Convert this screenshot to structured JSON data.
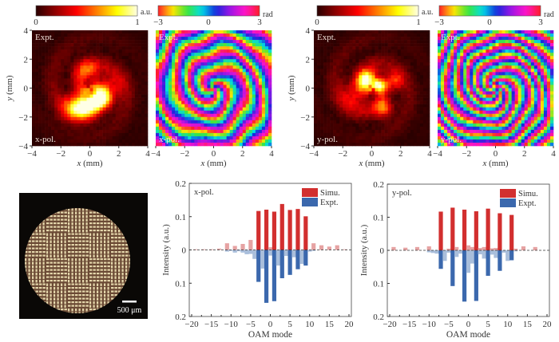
{
  "colorbars": {
    "intensity": {
      "min_label": "0",
      "max_label": "1",
      "unit": "a.u.",
      "colormap": "hot"
    },
    "phase": {
      "min_label": "-3",
      "mid_label": "0",
      "max_label": "3",
      "unit": "rad",
      "colormap": "hsv"
    }
  },
  "maps": [
    {
      "kind": "intensity",
      "top_label": "Expt.",
      "bottom_label": "x-pol.",
      "xlabel": "x (mm)",
      "ylabel": "y (mm)",
      "ticks": [
        "-4",
        "-2",
        "0",
        "2",
        "4"
      ]
    },
    {
      "kind": "phase",
      "top_label": "Expt.",
      "bottom_label": "x-pol.",
      "xlabel": "x (mm)",
      "ticks": [
        "-4",
        "-2",
        "0",
        "2",
        "4"
      ]
    },
    {
      "kind": "intensity",
      "top_label": "Expt.",
      "bottom_label": "y-pol.",
      "xlabel": "x (mm)",
      "ylabel": "y (mm)",
      "ticks": [
        "-4",
        "-2",
        "0",
        "2",
        "4"
      ]
    },
    {
      "kind": "phase",
      "top_label": "Expt.",
      "bottom_label": "y-pol.",
      "xlabel": "x (mm)",
      "ticks": [
        "-4",
        "-2",
        "0",
        "2",
        "4"
      ]
    }
  ],
  "photo": {
    "scale_bar_label": "500 μm"
  },
  "colors": {
    "simu": "#d22f2f",
    "simu_light": "#e6a3a3",
    "expt": "#3b68ad",
    "expt_light": "#a9bedb"
  },
  "chart_data": [
    {
      "type": "bar",
      "title": "x-pol.",
      "xlabel": "OAM mode",
      "ylabel": "Intensity (a.u.)",
      "xlim": [
        -20,
        20
      ],
      "xticks": [
        -20,
        -15,
        -10,
        -5,
        0,
        5,
        10,
        15,
        20
      ],
      "ylim_up": [
        0,
        0.2
      ],
      "ylim_down": [
        0,
        0.2
      ],
      "yticks": [
        "0.2",
        "0.1",
        "0",
        "0.1",
        "0.2"
      ],
      "legend": {
        "position": "top-right",
        "entries": [
          "Simu.",
          "Expt."
        ]
      },
      "design_modes": [
        -3,
        -1,
        1,
        3,
        5,
        7,
        9
      ],
      "series": [
        {
          "name": "Simu.",
          "direction": "up",
          "modes": [
            -19,
            -17,
            -15,
            -13,
            -11,
            -9,
            -7,
            -5,
            -3,
            -1,
            0,
            1,
            3,
            5,
            7,
            9,
            11,
            13,
            15,
            17,
            19
          ],
          "values": [
            0.002,
            0.002,
            0.002,
            0.004,
            0.02,
            0.012,
            0.018,
            0.03,
            0.117,
            0.121,
            0.008,
            0.115,
            0.138,
            0.12,
            0.123,
            0.101,
            0.02,
            0.014,
            0.01,
            0.014,
            0.002
          ]
        },
        {
          "name": "Expt.",
          "direction": "down",
          "modes": [
            -11,
            -10,
            -9,
            -8,
            -7,
            -6,
            -5,
            -4,
            -3,
            -2,
            -1,
            0,
            1,
            2,
            3,
            4,
            5,
            6,
            7,
            8,
            9,
            10,
            11
          ],
          "values": [
            0.005,
            0.003,
            0.008,
            0.004,
            0.008,
            0.013,
            0.012,
            0.027,
            0.096,
            0.056,
            0.159,
            0.017,
            0.154,
            0.047,
            0.085,
            0.018,
            0.075,
            0.022,
            0.058,
            0.042,
            0.047,
            0.005,
            0.003
          ]
        }
      ]
    },
    {
      "type": "bar",
      "title": "y-pol.",
      "xlabel": "OAM mode",
      "ylabel": "Intensity (a.u.)",
      "xlim": [
        -20,
        20
      ],
      "xticks": [
        -20,
        -15,
        -10,
        -5,
        0,
        5,
        10,
        15,
        20
      ],
      "ylim_up": [
        0,
        0.2
      ],
      "ylim_down": [
        0,
        0.2
      ],
      "yticks": [
        "0.2",
        "0.1",
        "0",
        "0.1",
        "0.2"
      ],
      "legend": {
        "position": "top-right",
        "entries": [
          "Simu.",
          "Expt."
        ]
      },
      "design_modes": [
        -7,
        -4,
        -1,
        2,
        5,
        8,
        11
      ],
      "series": [
        {
          "name": "Simu.",
          "direction": "up",
          "modes": [
            -19,
            -16,
            -13,
            -10,
            -7,
            -5,
            -4,
            -3,
            -1,
            0,
            1,
            2,
            3,
            4,
            5,
            6,
            7,
            8,
            11,
            12,
            14,
            17
          ],
          "values": [
            0.01,
            0.008,
            0.01,
            0.012,
            0.117,
            0.005,
            0.129,
            0.01,
            0.123,
            0.015,
            0.01,
            0.118,
            0.007,
            0.01,
            0.126,
            0.006,
            0.007,
            0.112,
            0.107,
            0.005,
            0.012,
            0.01
          ]
        },
        {
          "name": "Expt.",
          "direction": "down",
          "modes": [
            -10,
            -9,
            -8,
            -7,
            -6,
            -5,
            -4,
            -3,
            -2,
            -1,
            0,
            1,
            2,
            3,
            4,
            5,
            6,
            7,
            8,
            9,
            10,
            11,
            12
          ],
          "values": [
            0.006,
            0.008,
            0.01,
            0.056,
            0.032,
            0.007,
            0.108,
            0.02,
            0.01,
            0.155,
            0.068,
            0.04,
            0.153,
            0.012,
            0.025,
            0.077,
            0.013,
            0.023,
            0.062,
            0.007,
            0.032,
            0.03,
            0.003
          ]
        }
      ]
    }
  ]
}
